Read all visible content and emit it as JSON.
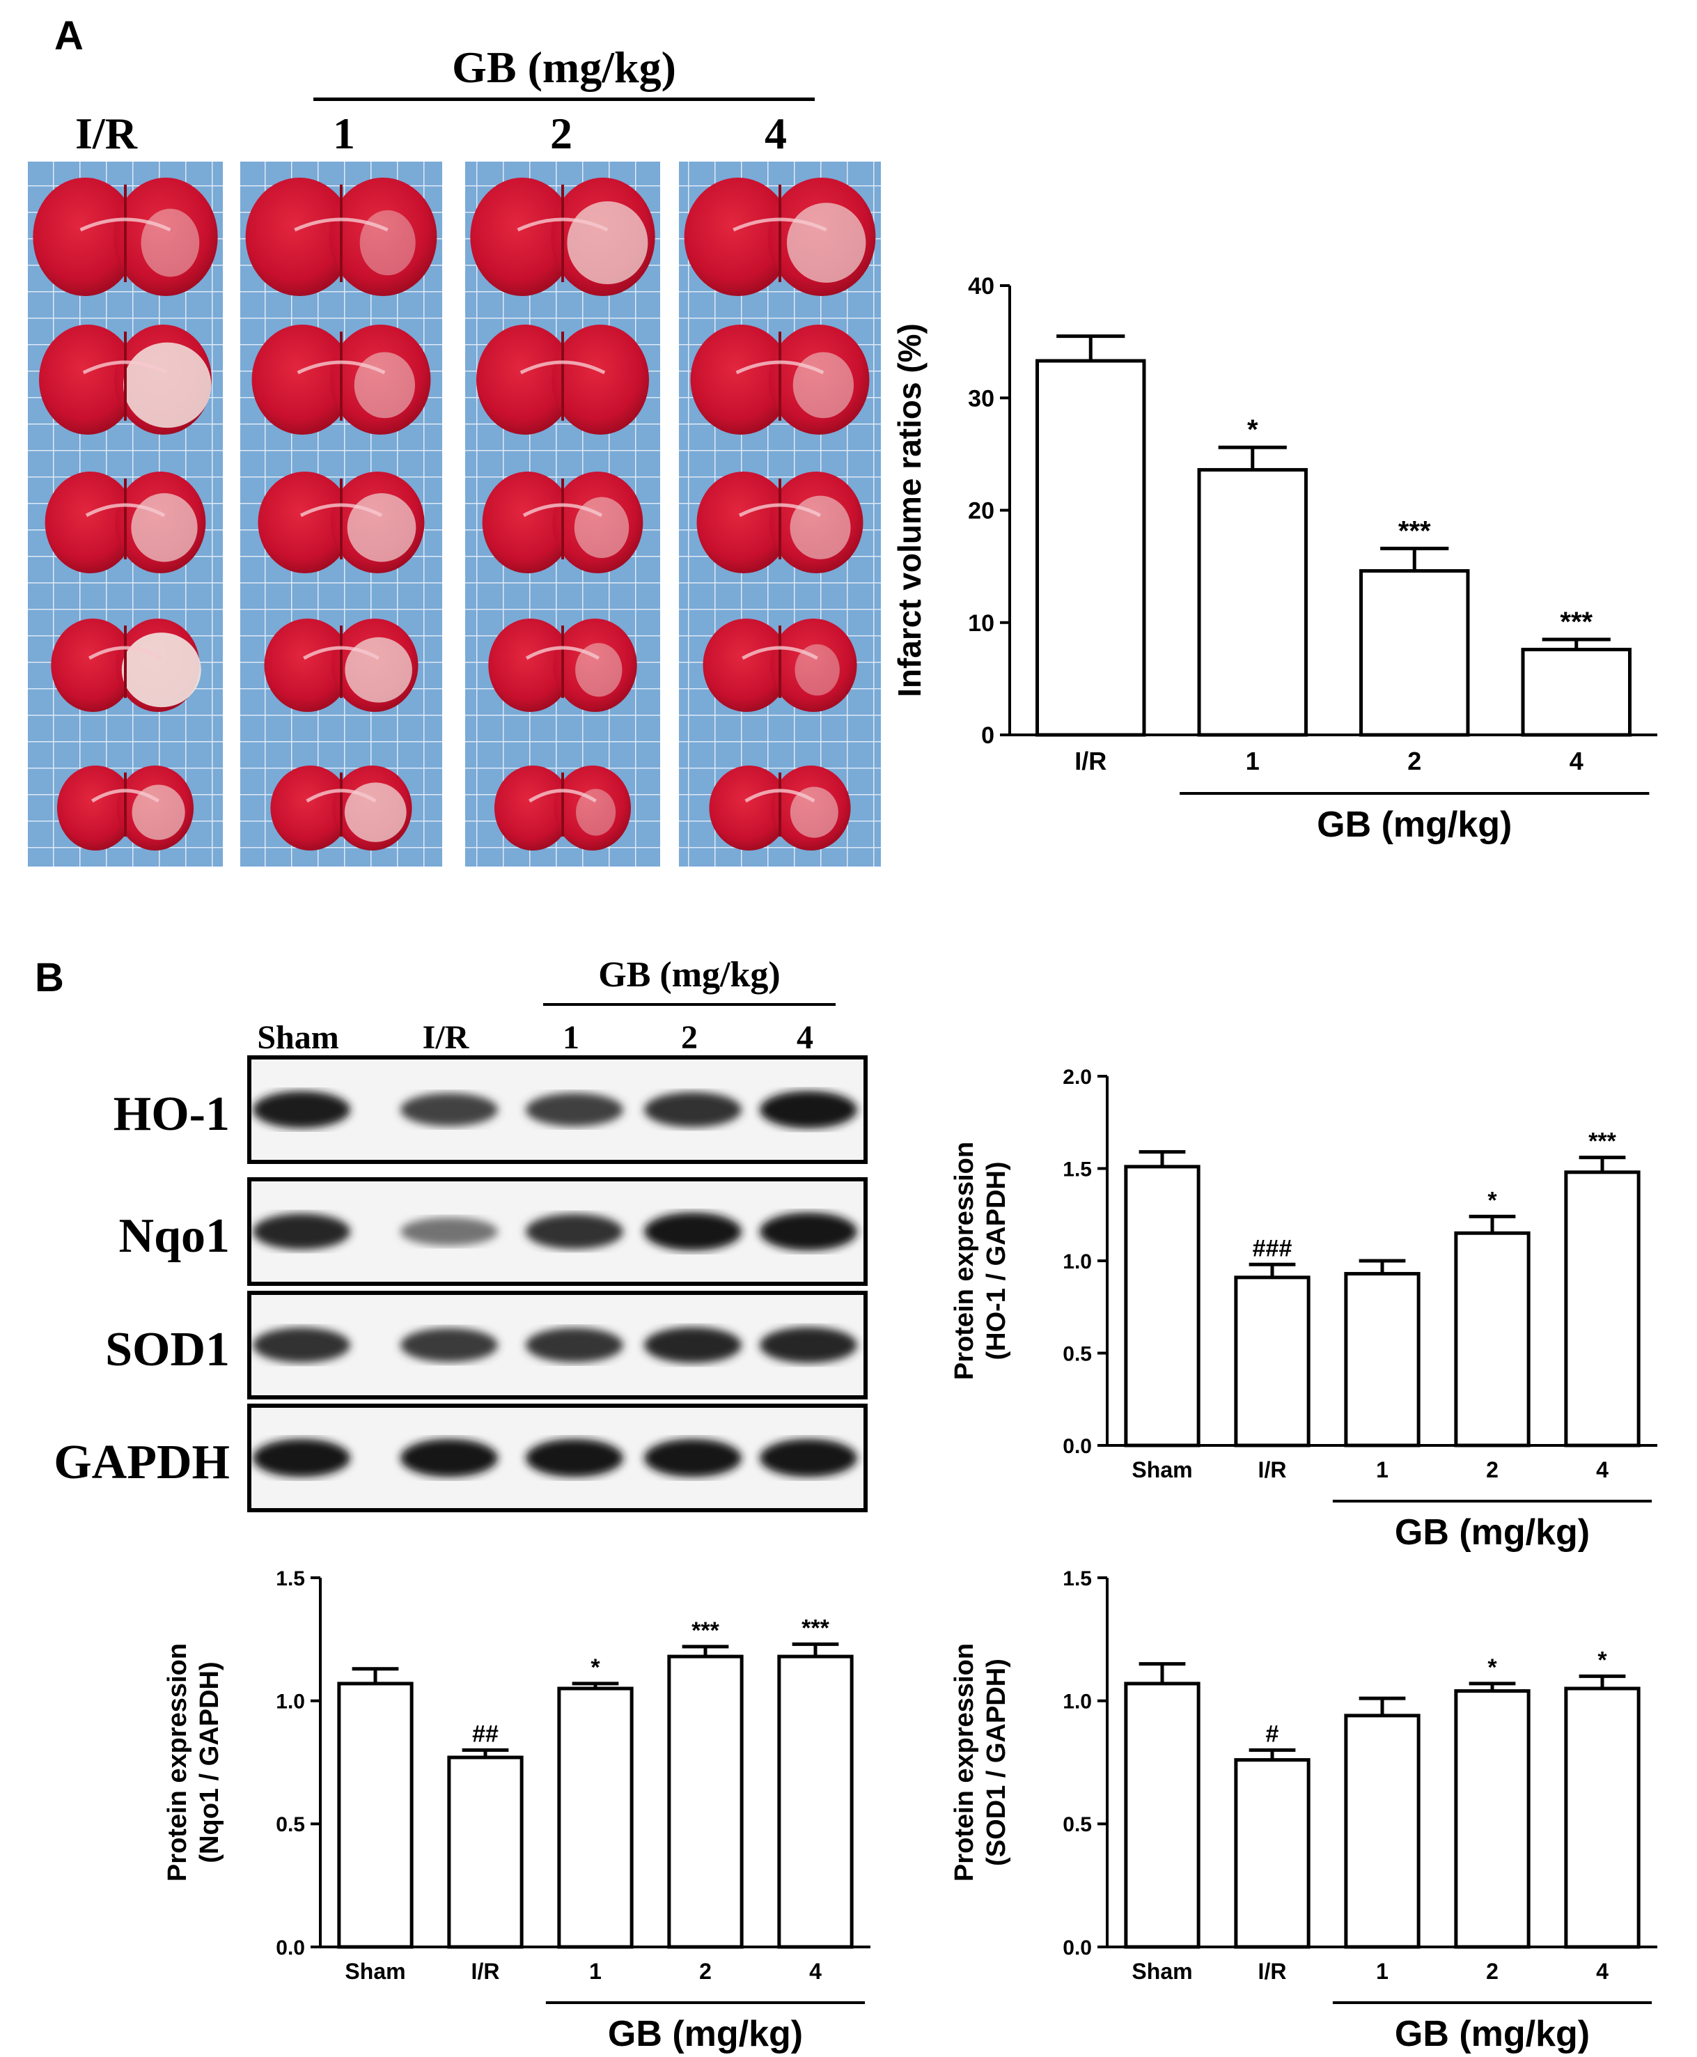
{
  "panel_a": {
    "letter": "A",
    "header": {
      "group": "GB (mg/kg)",
      "ir": "I/R",
      "doses": [
        "1",
        "2",
        "4"
      ]
    },
    "slices_per_column": 5
  },
  "panel_b": {
    "letter": "B",
    "blot_header": {
      "group": "GB (mg/kg)",
      "lanes": [
        "Sham",
        "I/R",
        "1",
        "2",
        "4"
      ]
    },
    "blot_rows": [
      "HO-1",
      "Nqo1",
      "SOD1",
      "GAPDH"
    ],
    "band_intensity": {
      "HO-1": [
        0.9,
        0.7,
        0.72,
        0.8,
        0.92
      ],
      "Nqo1": [
        0.85,
        0.45,
        0.8,
        0.95,
        0.95
      ],
      "SOD1": [
        0.8,
        0.75,
        0.78,
        0.85,
        0.85
      ],
      "GAPDH": [
        0.95,
        0.95,
        0.95,
        0.95,
        0.95
      ]
    }
  },
  "colors": {
    "tissue_red": "#c8102e",
    "tissue_dark": "#a00820",
    "background_blue": "#7aaad6",
    "grid": "#dfe9f5"
  },
  "chart_data": [
    {
      "type": "bar",
      "categories": [
        "I/R",
        "1",
        "2",
        "4"
      ],
      "values": [
        33.3,
        23.6,
        14.6,
        7.6
      ],
      "errors": [
        2.2,
        2.0,
        2.0,
        0.9
      ],
      "annotations": [
        "",
        "*",
        "***",
        "***"
      ],
      "ylabel": "Infarct volume ratios (%)",
      "yticks": [
        "0",
        "10",
        "20",
        "30",
        "40"
      ],
      "ylim": [
        0,
        40
      ],
      "group_label": "GB (mg/kg)",
      "group_start_index": 1
    },
    {
      "type": "bar",
      "categories": [
        "Sham",
        "I/R",
        "1",
        "2",
        "4"
      ],
      "values": [
        1.51,
        0.91,
        0.93,
        1.15,
        1.48
      ],
      "errors": [
        0.08,
        0.07,
        0.07,
        0.09,
        0.08
      ],
      "annotations": [
        "",
        "###",
        "",
        "*",
        "***"
      ],
      "ylabel": "Protein expression\n(HO-1 / GAPDH)",
      "yticks": [
        "0.0",
        "0.5",
        "1.0",
        "1.5",
        "2.0"
      ],
      "ylim": [
        0,
        2.0
      ],
      "group_label": "GB (mg/kg)",
      "group_start_index": 2
    },
    {
      "type": "bar",
      "categories": [
        "Sham",
        "I/R",
        "1",
        "2",
        "4"
      ],
      "values": [
        1.07,
        0.77,
        1.05,
        1.18,
        1.18
      ],
      "errors": [
        0.06,
        0.03,
        0.02,
        0.04,
        0.05
      ],
      "annotations": [
        "",
        "##",
        "*",
        "***",
        "***"
      ],
      "ylabel": "Protein expression\n(Nqo1 / GAPDH)",
      "yticks": [
        "0.0",
        "0.5",
        "1.0",
        "1.5"
      ],
      "ylim": [
        0,
        1.5
      ],
      "group_label": "GB (mg/kg)",
      "group_start_index": 2
    },
    {
      "type": "bar",
      "categories": [
        "Sham",
        "I/R",
        "1",
        "2",
        "4"
      ],
      "values": [
        1.07,
        0.76,
        0.94,
        1.04,
        1.05
      ],
      "errors": [
        0.08,
        0.04,
        0.07,
        0.03,
        0.05
      ],
      "annotations": [
        "",
        "#",
        "",
        "*",
        "*"
      ],
      "ylabel": "Protein expression\n(SOD1 / GAPDH)",
      "yticks": [
        "0.0",
        "0.5",
        "1.0",
        "1.5"
      ],
      "ylim": [
        0,
        1.5
      ],
      "group_label": "GB (mg/kg)",
      "group_start_index": 2
    }
  ]
}
